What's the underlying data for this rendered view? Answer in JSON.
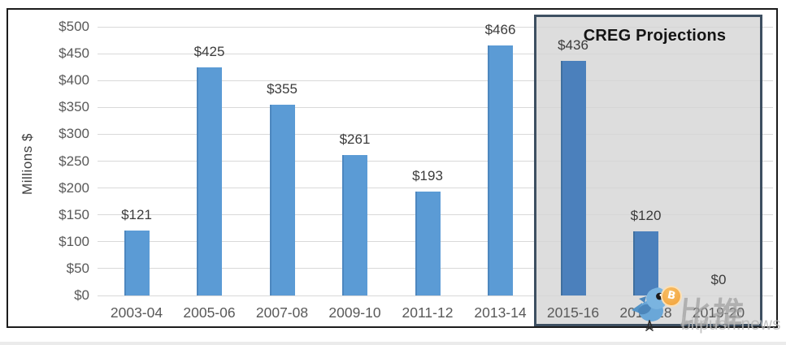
{
  "chart_data": {
    "type": "bar",
    "title": "",
    "ylabel": "Millions $",
    "xlabel": "",
    "categories": [
      "2003-04",
      "2005-06",
      "2007-08",
      "2009-10",
      "2011-12",
      "2013-14",
      "2015-16",
      "2017-18",
      "2019-20"
    ],
    "values": [
      121,
      425,
      355,
      261,
      193,
      466,
      436,
      120,
      0
    ],
    "value_labels": [
      "$121",
      "$425",
      "$355",
      "$261",
      "$193",
      "$466",
      "$436",
      "$120",
      "$0"
    ],
    "ylim": [
      0,
      500
    ],
    "ytick_step": 50,
    "ytick_labels": [
      "$0",
      "$50",
      "$100",
      "$150",
      "$200",
      "$250",
      "$300",
      "$350",
      "$400",
      "$450",
      "$500"
    ],
    "grid": true,
    "legend": false,
    "annotation_box": {
      "label": "CREG Projections",
      "covers": [
        "2015-16",
        "2017-18",
        "2019-20"
      ]
    }
  },
  "colors": {
    "bar": "#5b9bd5",
    "bar_edge": "#4d87bf",
    "bar_projected": "#4b80bc",
    "bar_projected_edge": "#40709f",
    "grid": "#d9d9d9",
    "box_fill": "rgba(213,213,213,0.82)",
    "box_border": "#3d4f61",
    "frame": "#1c1c1c",
    "tick_text": "#595959",
    "value_text": "#3b3b3b",
    "bitcoin_orange": "#f2a23a",
    "bird_blue": "#6aa7d8"
  },
  "watermark": {
    "brand_cn": "比推",
    "brand_en": "bitpush.news",
    "bitcoin_glyph": "B"
  }
}
